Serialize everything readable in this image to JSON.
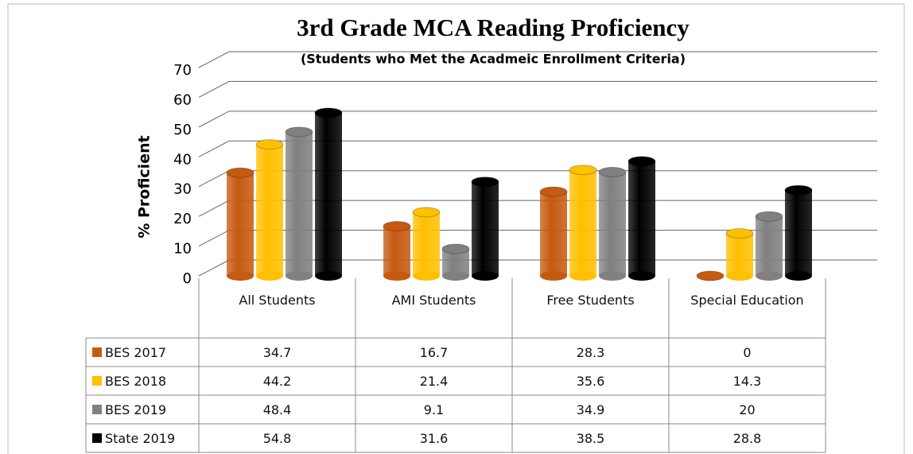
{
  "chart_data": {
    "type": "bar",
    "title": "3rd Grade MCA Reading Proficiency",
    "subtitle": "(Students who Met the Acadmeic Enrollment Criteria)",
    "y_label": "% Proficient",
    "categories": [
      "All Students",
      "AMI Students",
      "Free Students",
      "Special Education"
    ],
    "series": [
      {
        "name": "BES 2017",
        "color": "#c55a11",
        "values": [
          34.7,
          16.7,
          28.3,
          0
        ]
      },
      {
        "name": "BES 2018",
        "color": "#ffc000",
        "values": [
          44.2,
          21.4,
          35.6,
          14.3
        ]
      },
      {
        "name": "BES 2019",
        "color": "#808080",
        "values": [
          48.4,
          9.1,
          34.9,
          20
        ]
      },
      {
        "name": "State 2019",
        "color": "#000000",
        "values": [
          54.8,
          31.6,
          38.5,
          28.8
        ]
      }
    ],
    "ylim": [
      0,
      70
    ],
    "yticks": [
      0,
      10,
      20,
      30,
      40,
      50,
      60,
      70
    ],
    "grid": true
  }
}
